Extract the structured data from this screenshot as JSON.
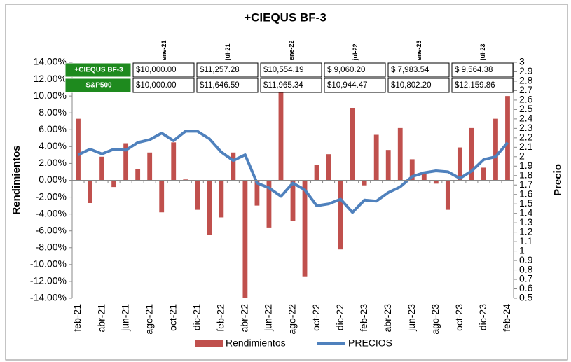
{
  "chart_data": {
    "type": "bar-line",
    "title": "+CIEQUS BF-3",
    "y_label": "Rendimientos",
    "y2_label": "Precio",
    "categories": [
      "feb-21",
      null,
      "abr-21",
      null,
      "jun-21",
      null,
      "ago-21",
      null,
      "oct-21",
      null,
      "dic-21",
      null,
      "feb-22",
      null,
      "abr-22",
      null,
      "jun-22",
      null,
      "ago-22",
      null,
      "oct-22",
      null,
      "dic-22",
      null,
      "feb-23",
      null,
      "abr-23",
      null,
      "jun-23",
      null,
      "ago-23",
      null,
      "oct-23",
      null,
      "dic-23",
      null,
      "feb-24"
    ],
    "series": [
      {
        "name": "Rendimientos",
        "type": "bar",
        "color": "#c0504d",
        "axis": "y",
        "values": [
          7.3,
          -2.7,
          2.8,
          -0.8,
          4.4,
          1.3,
          3.3,
          -3.8,
          4.5,
          0.1,
          -3.5,
          -6.5,
          -4.4,
          3.3,
          -14.0,
          -3.0,
          -5.6,
          11.9,
          -4.8,
          -11.4,
          1.8,
          3.1,
          -8.2,
          8.6,
          -0.6,
          5.4,
          3.6,
          6.2,
          2.5,
          0.9,
          -0.4,
          -3.5,
          3.9,
          6.2,
          1.5,
          7.3,
          10.0
        ]
      },
      {
        "name": "PRECIOS",
        "type": "line",
        "color": "#4f81bd",
        "axis": "y2",
        "values": [
          2.02,
          2.08,
          2.03,
          2.08,
          2.07,
          2.15,
          2.18,
          2.25,
          2.17,
          2.27,
          2.27,
          2.19,
          2.05,
          1.96,
          2.02,
          1.72,
          1.67,
          1.58,
          1.72,
          1.65,
          1.48,
          1.5,
          1.55,
          1.41,
          1.54,
          1.53,
          1.62,
          1.68,
          1.79,
          1.83,
          1.85,
          1.84,
          1.77,
          1.85,
          1.97,
          2.0,
          2.15
        ]
      }
    ],
    "ylim": [
      -14,
      14
    ],
    "yticks": [
      {
        "value": 14,
        "label": "14.00%"
      },
      {
        "value": 12,
        "label": "12.00%"
      },
      {
        "value": 10,
        "label": "10.00%"
      },
      {
        "value": 8,
        "label": "8.00%"
      },
      {
        "value": 6,
        "label": "6.00%"
      },
      {
        "value": 4,
        "label": "4.00%"
      },
      {
        "value": 2,
        "label": "2.00%"
      },
      {
        "value": 0,
        "label": "0.00%"
      },
      {
        "value": -2,
        "label": "-2.00%"
      },
      {
        "value": -4,
        "label": "-4.00%"
      },
      {
        "value": -6,
        "label": "-6.00%"
      },
      {
        "value": -8,
        "label": "-8.00%"
      },
      {
        "value": -10,
        "label": "-10.00%"
      },
      {
        "value": -12,
        "label": "-12.00%"
      },
      {
        "value": -14,
        "label": "-14.00%"
      }
    ],
    "y2lim": [
      0.5,
      3
    ],
    "y2ticks": [
      3,
      2.9,
      2.8,
      2.7,
      2.6,
      2.5,
      2.4,
      2.3,
      2.2,
      2.1,
      2,
      1.9,
      1.8,
      1.7,
      1.6,
      1.5,
      1.4,
      1.3,
      1.2,
      1.1,
      1,
      0.9,
      0.8,
      0.7,
      0.6,
      0.5
    ],
    "legend": "bottom",
    "table": {
      "columns": [
        "ene-21",
        "jul-21",
        "ene-22",
        "jul-22",
        "ene-23",
        "jul-23"
      ],
      "rows": [
        {
          "label": "+CIEQUS BF-3",
          "values": [
            "$10,000.00",
            "$11,257.28",
            "$10,554.19",
            "$ 9,060.20",
            "$ 7,983.54",
            "$ 9,564.38"
          ]
        },
        {
          "label": "S&P500",
          "values": [
            "$10,000.00",
            "$11,646.59",
            "$11,965.34",
            "$10,944.47",
            "$10,802.20",
            "$12,159.86"
          ]
        }
      ]
    }
  }
}
